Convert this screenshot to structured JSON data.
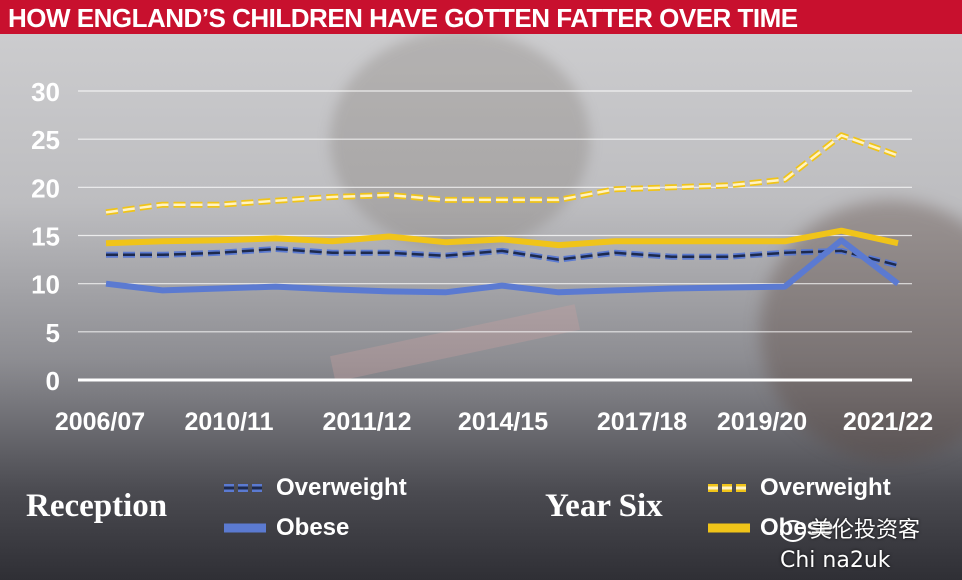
{
  "title": "HOW ENGLAND’S CHILDREN HAVE GOTTEN FATTER OVER TIME",
  "colors": {
    "title_bar": "#c8102e",
    "reception": "#5b7ad1",
    "reception_dash_fill": "#1e2a4d",
    "year_six": "#f0c419",
    "year_six_dash_fill": "#fff3c4"
  },
  "chart_data": {
    "type": "line",
    "title": "",
    "xlabel": "",
    "ylabel": "",
    "ylim": [
      0,
      30
    ],
    "yticks": [
      "0",
      "5",
      "10",
      "15",
      "20",
      "25",
      "30"
    ],
    "x_tick_labels": [
      "2006/07",
      "2010/11",
      "2011/12",
      "2014/15",
      "2017/18",
      "2019/20",
      "2021/22"
    ],
    "grid": true,
    "series": [
      {
        "name": "Overweight",
        "group": "Year Six",
        "style": "dashed",
        "values": [
          17.4,
          18.2,
          18.2,
          18.6,
          19.0,
          19.2,
          18.7,
          18.7,
          18.7,
          19.8,
          20.0,
          20.2,
          20.8,
          25.4,
          23.3
        ]
      },
      {
        "name": "Obese",
        "group": "Year Six",
        "style": "solid",
        "values": [
          14.2,
          14.4,
          14.5,
          14.7,
          14.4,
          14.9,
          14.3,
          14.6,
          14.0,
          14.4,
          14.4,
          14.4,
          14.4,
          15.5,
          14.2
        ]
      },
      {
        "name": "Overweight",
        "group": "Reception",
        "style": "dashed",
        "values": [
          13.0,
          13.0,
          13.2,
          13.6,
          13.2,
          13.2,
          12.9,
          13.4,
          12.5,
          13.2,
          12.8,
          12.8,
          13.2,
          13.4,
          11.9
        ]
      },
      {
        "name": "Obese",
        "group": "Reception",
        "style": "solid",
        "values": [
          10.0,
          9.3,
          9.5,
          9.7,
          9.4,
          9.2,
          9.1,
          9.8,
          9.1,
          9.3,
          9.5,
          9.6,
          9.7,
          14.5,
          10.0
        ]
      }
    ],
    "legend": {
      "position": "bottom",
      "groups": [
        {
          "label": "Reception",
          "entries": [
            "Overweight",
            "Obese"
          ]
        },
        {
          "label": "Year Six",
          "entries": [
            "Overweight",
            "Obese"
          ]
        }
      ]
    }
  },
  "watermark": {
    "line1": "美伦投资客",
    "line2": "Chi na2uk"
  }
}
